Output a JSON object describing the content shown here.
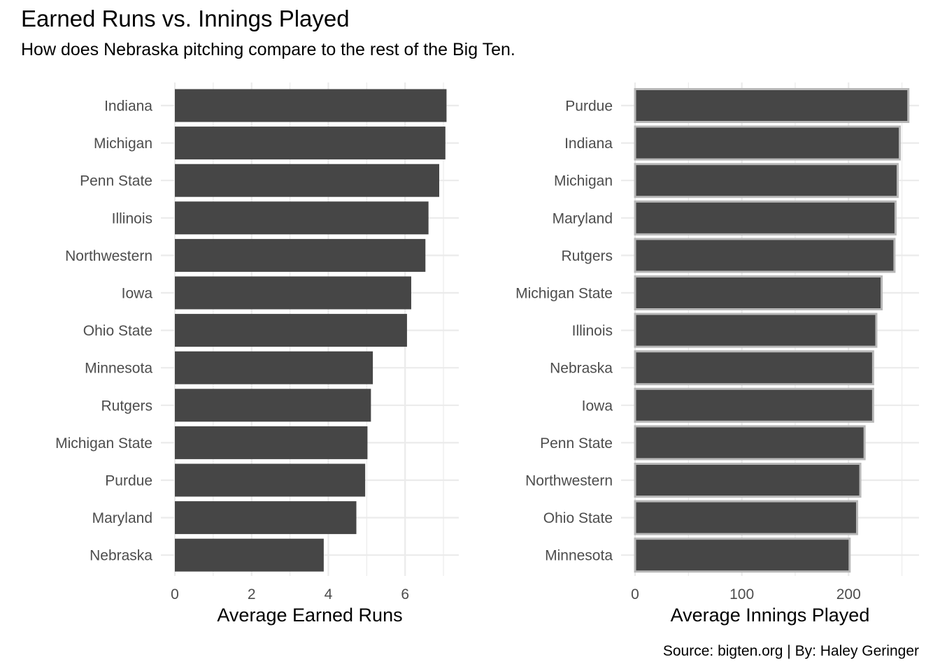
{
  "title": "Earned Runs vs. Innings Played",
  "subtitle": "How does Nebraska pitching compare to the rest of the Big Ten.",
  "caption": "Source: bigten.org | By: Haley Geringer",
  "colors": {
    "bar_fill": "#464646",
    "right_bar_outline": "#b8b8b8",
    "grid": "#ebebeb",
    "tick_text": "#4d4d4d"
  },
  "chart_data": [
    {
      "type": "bar",
      "orientation": "horizontal",
      "categories": [
        "Indiana",
        "Michigan",
        "Penn State",
        "Illinois",
        "Northwestern",
        "Iowa",
        "Ohio State",
        "Minnesota",
        "Rutgers",
        "Michigan State",
        "Purdue",
        "Maryland",
        "Nebraska"
      ],
      "values": [
        7.08,
        7.05,
        6.89,
        6.61,
        6.53,
        6.16,
        6.05,
        5.16,
        5.11,
        5.02,
        4.96,
        4.73,
        3.88
      ],
      "xlabel": "Average Earned Runs",
      "ylabel": "",
      "xlim": [
        0,
        7.4
      ],
      "xticks": [
        0,
        2,
        4,
        6
      ],
      "grid": true,
      "bar_outline": false
    },
    {
      "type": "bar",
      "orientation": "horizontal",
      "categories": [
        "Purdue",
        "Indiana",
        "Michigan",
        "Maryland",
        "Rutgers",
        "Michigan State",
        "Illinois",
        "Nebraska",
        "Iowa",
        "Penn State",
        "Northwestern",
        "Ohio State",
        "Minnesota"
      ],
      "values": [
        256,
        248,
        246,
        244,
        243,
        231,
        226,
        223,
        223,
        215,
        211,
        208,
        201
      ],
      "xlabel": "Average Innings Played",
      "ylabel": "",
      "xlim": [
        0,
        266
      ],
      "xticks": [
        0,
        100,
        200
      ],
      "grid": true,
      "bar_outline": true
    }
  ]
}
